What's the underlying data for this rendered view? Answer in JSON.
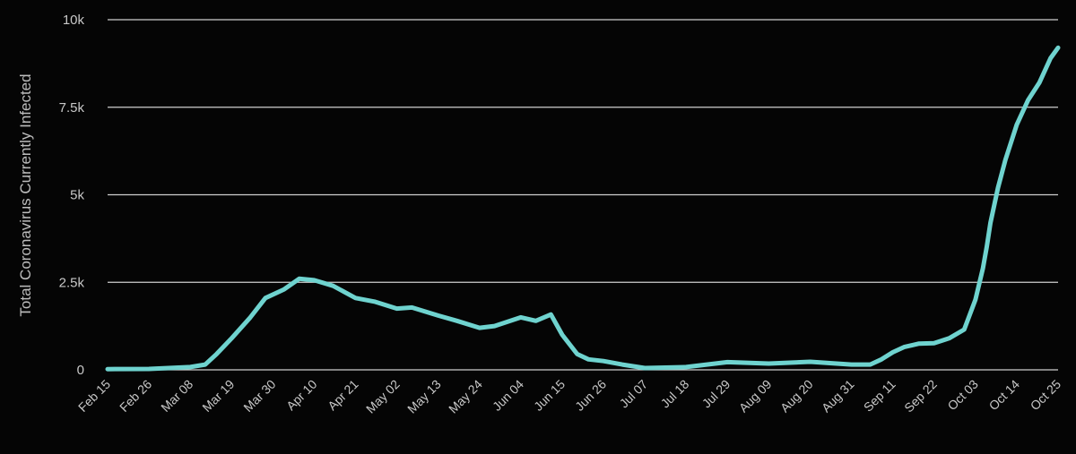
{
  "chart_data": {
    "type": "line",
    "title": "",
    "xlabel": "",
    "ylabel": "Total Coronavirus Currently Infected",
    "ylim": [
      0,
      10000
    ],
    "y_ticks": [
      {
        "value": 0,
        "label": "0"
      },
      {
        "value": 2500,
        "label": "2.5k"
      },
      {
        "value": 5000,
        "label": "5k"
      },
      {
        "value": 7500,
        "label": "7.5k"
      },
      {
        "value": 10000,
        "label": "10k"
      }
    ],
    "x_ticks": [
      "Feb 15",
      "Feb 26",
      "Mar 08",
      "Mar 19",
      "Mar 30",
      "Apr 10",
      "Apr 21",
      "May 02",
      "May 13",
      "May 24",
      "Jun 04",
      "Jun 15",
      "Jun 26",
      "Jul 07",
      "Jul 18",
      "Jul 29",
      "Aug 09",
      "Aug 20",
      "Aug 31",
      "Sep 11",
      "Sep 22",
      "Oct 03",
      "Oct 14",
      "Oct 25"
    ],
    "grid": true,
    "colors": {
      "line": "#6fd3cf",
      "grid": "#cfcfcf",
      "background": "#050505",
      "text": "#c8c8c8"
    },
    "series": [
      {
        "x": [
          "Feb 15",
          "Feb 26",
          "Mar 08",
          "Mar 12",
          "Mar 15",
          "Mar 19",
          "Mar 24",
          "Mar 28",
          "Apr 02",
          "Apr 06",
          "Apr 10",
          "Apr 15",
          "Apr 21",
          "Apr 26",
          "May 02",
          "May 06",
          "May 13",
          "May 18",
          "May 24",
          "May 28",
          "Jun 04",
          "Jun 08",
          "Jun 12",
          "Jun 15",
          "Jun 19",
          "Jun 22",
          "Jun 26",
          "Jul 01",
          "Jul 07",
          "Jul 18",
          "Jul 29",
          "Aug 09",
          "Aug 20",
          "Aug 31",
          "Sep 05",
          "Sep 08",
          "Sep 11",
          "Sep 14",
          "Sep 18",
          "Sep 22",
          "Sep 26",
          "Sep 30",
          "Oct 03",
          "Oct 05",
          "Oct 06",
          "Oct 07",
          "Oct 09",
          "Oct 11",
          "Oct 14",
          "Oct 17",
          "Oct 20",
          "Oct 23",
          "Oct 25"
        ],
        "y": [
          20,
          25,
          80,
          150,
          450,
          900,
          1500,
          2050,
          2300,
          2600,
          2560,
          2400,
          2050,
          1950,
          1750,
          1780,
          1550,
          1400,
          1200,
          1250,
          1500,
          1400,
          1580,
          1000,
          450,
          300,
          250,
          150,
          50,
          80,
          220,
          180,
          230,
          150,
          150,
          300,
          500,
          650,
          750,
          760,
          900,
          1150,
          2000,
          2900,
          3500,
          4200,
          5200,
          6000,
          7000,
          7700,
          8200,
          8900,
          9200
        ]
      }
    ]
  }
}
